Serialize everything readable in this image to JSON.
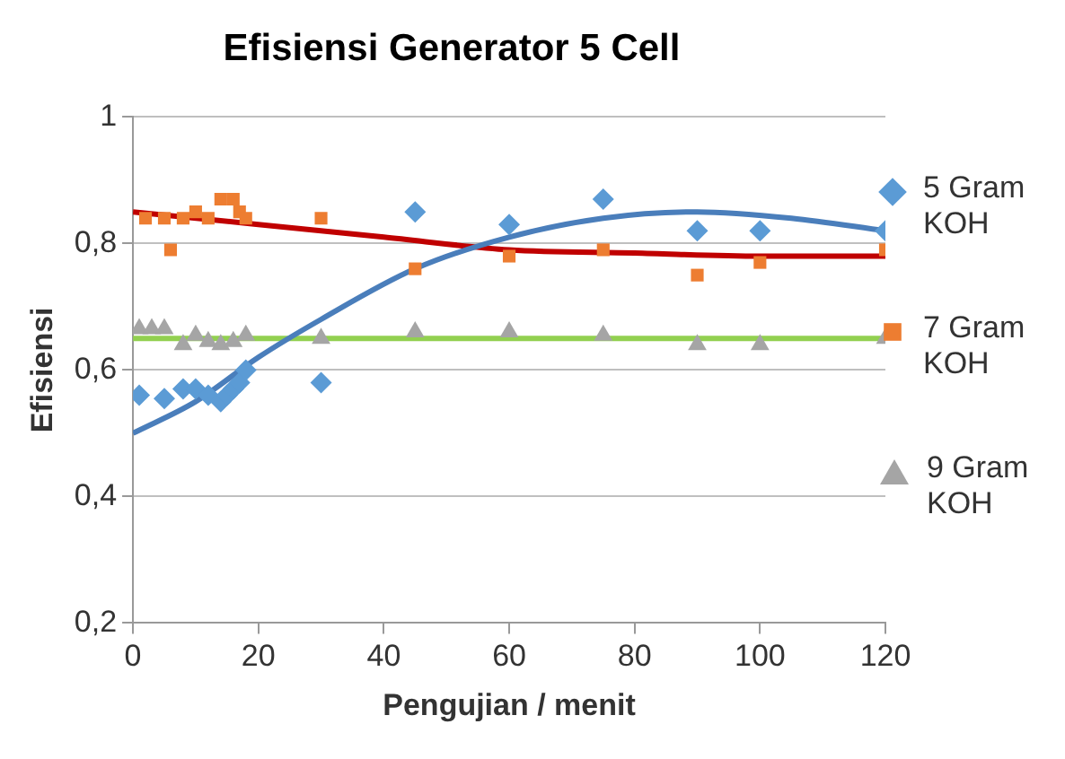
{
  "chart_data": {
    "type": "scatter",
    "title": "Efisiensi Generator 5 Cell",
    "xlabel": "Pengujian / menit",
    "ylabel": "Efisiensi",
    "xlim": [
      0,
      120
    ],
    "xticks": [
      0,
      20,
      40,
      60,
      80,
      100,
      120
    ],
    "ylim": [
      0.2,
      1
    ],
    "yticks": [
      {
        "value": 0.2,
        "label": "0,2"
      },
      {
        "value": 0.4,
        "label": "0,4"
      },
      {
        "value": 0.6,
        "label": "0,6"
      },
      {
        "value": 0.8,
        "label": "0,8"
      },
      1
    ],
    "grid": "y",
    "legend": "right",
    "series": [
      {
        "name": "5 Gram KOH",
        "color": "#5b9bd5",
        "marker": "diamond",
        "x": [
          1,
          5,
          8,
          10,
          12,
          14,
          15,
          16,
          17,
          18,
          30,
          45,
          60,
          75,
          90,
          100,
          120
        ],
        "values": [
          0.56,
          0.555,
          0.57,
          0.57,
          0.56,
          0.55,
          0.56,
          0.57,
          0.58,
          0.6,
          0.58,
          0.85,
          0.83,
          0.87,
          0.82,
          0.82,
          0.82
        ]
      },
      {
        "name": "7 Gram KOH",
        "color": "#ed7d31",
        "marker": "square",
        "x": [
          2,
          5,
          6,
          8,
          10,
          12,
          14,
          16,
          17,
          18,
          30,
          45,
          60,
          75,
          90,
          100,
          120
        ],
        "values": [
          0.84,
          0.84,
          0.79,
          0.84,
          0.85,
          0.84,
          0.87,
          0.87,
          0.85,
          0.84,
          0.84,
          0.76,
          0.78,
          0.79,
          0.75,
          0.77,
          0.79
        ]
      },
      {
        "name": "9 Gram KOH",
        "color": "#a5a5a5",
        "marker": "triangle",
        "x": [
          1,
          3,
          5,
          8,
          10,
          12,
          14,
          16,
          18,
          30,
          45,
          60,
          75,
          90,
          100,
          120
        ],
        "values": [
          0.665,
          0.665,
          0.665,
          0.64,
          0.655,
          0.645,
          0.64,
          0.645,
          0.655,
          0.65,
          0.66,
          0.66,
          0.655,
          0.64,
          0.64,
          0.65
        ]
      },
      {
        "type": "line",
        "color": "#4a7ebb",
        "marker": "none",
        "x": [
          0,
          10,
          20,
          30,
          45,
          60,
          75,
          90,
          105,
          120
        ],
        "values": [
          0.5,
          0.55,
          0.62,
          0.68,
          0.76,
          0.81,
          0.84,
          0.85,
          0.84,
          0.82
        ]
      },
      {
        "type": "line",
        "color": "#c00000",
        "marker": "none",
        "x": [
          0,
          20,
          40,
          60,
          80,
          100,
          120
        ],
        "values": [
          0.85,
          0.83,
          0.81,
          0.79,
          0.785,
          0.78,
          0.78
        ]
      },
      {
        "type": "line",
        "color": "#92d050",
        "marker": "none",
        "x": [
          0,
          120
        ],
        "values": [
          0.65,
          0.65
        ]
      }
    ]
  }
}
